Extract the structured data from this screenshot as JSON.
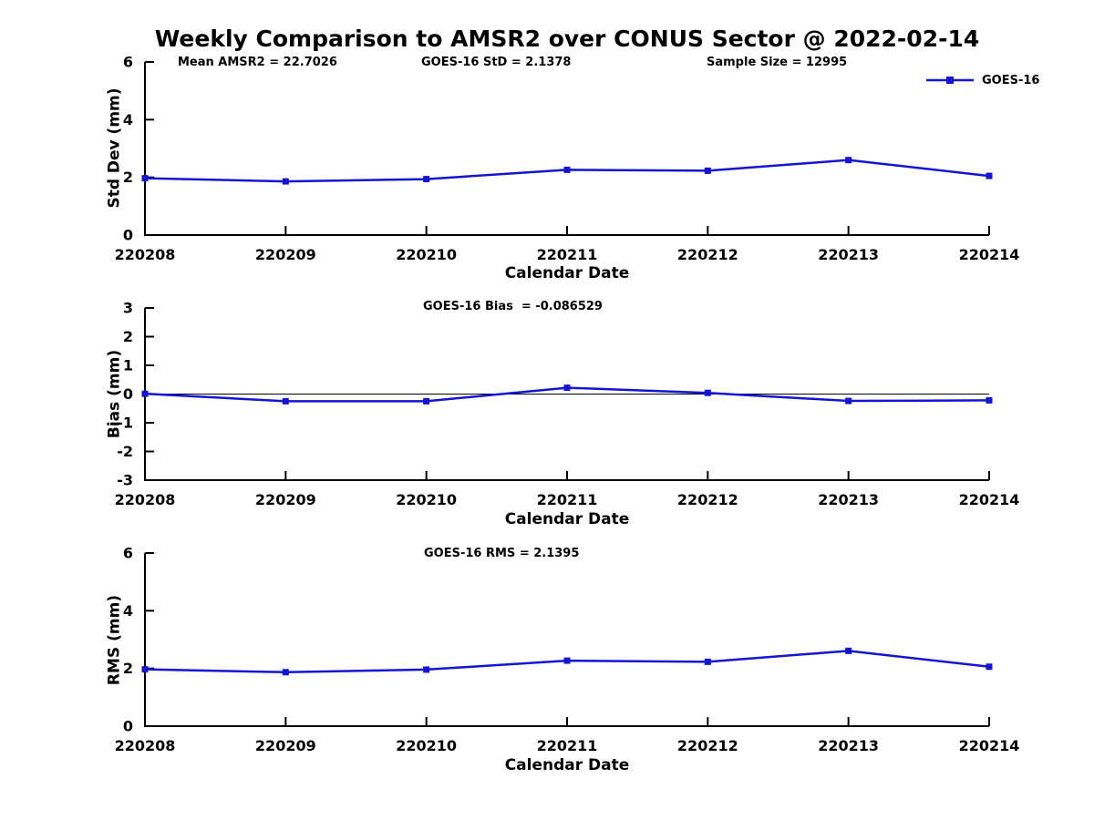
{
  "figure": {
    "title": "Weekly Comparison to AMSR2 over CONUS Sector @ 2022-02-14"
  },
  "legend": {
    "label": "GOES-16"
  },
  "colors": {
    "line": "#1414d6",
    "axis": "#000000",
    "text": "#000000",
    "background": "#ffffff"
  },
  "chart_data": [
    {
      "type": "line",
      "panel": "std-dev",
      "ylabel": "Std Dev (mm)",
      "xlabel": "Calendar Date",
      "ylim": [
        0,
        6
      ],
      "yticks": [
        0,
        2,
        4,
        6
      ],
      "grid": false,
      "legend_position": "top-right",
      "categories": [
        "220208",
        "220209",
        "220210",
        "220211",
        "220212",
        "220213",
        "220214"
      ],
      "series": [
        {
          "name": "GOES-16",
          "values": [
            1.97,
            1.86,
            1.94,
            2.26,
            2.23,
            2.6,
            2.05
          ]
        }
      ],
      "annotations": [
        "Mean AMSR2 = 22.7026",
        "GOES-16 StD = 2.1378",
        "Sample Size = 12995"
      ]
    },
    {
      "type": "line",
      "panel": "bias",
      "ylabel": "Bias (mm)",
      "xlabel": "Calendar Date",
      "ylim": [
        -3,
        3
      ],
      "yticks": [
        -3,
        -2,
        -1,
        0,
        1,
        2,
        3
      ],
      "zero_line": true,
      "grid": false,
      "categories": [
        "220208",
        "220209",
        "220210",
        "220211",
        "220212",
        "220213",
        "220214"
      ],
      "series": [
        {
          "name": "GOES-16",
          "values": [
            0.01,
            -0.25,
            -0.25,
            0.22,
            0.04,
            -0.24,
            -0.22
          ]
        }
      ],
      "annotations": [
        "GOES-16 Bias  = -0.086529"
      ]
    },
    {
      "type": "line",
      "panel": "rms",
      "ylabel": "RMS (mm)",
      "xlabel": "Calendar Date",
      "ylim": [
        0,
        6
      ],
      "yticks": [
        0,
        2,
        4,
        6
      ],
      "grid": false,
      "categories": [
        "220208",
        "220209",
        "220210",
        "220211",
        "220212",
        "220213",
        "220214"
      ],
      "series": [
        {
          "name": "GOES-16",
          "values": [
            1.97,
            1.87,
            1.96,
            2.27,
            2.23,
            2.61,
            2.06
          ]
        }
      ],
      "annotations": [
        "GOES-16 RMS = 2.1395"
      ]
    }
  ]
}
